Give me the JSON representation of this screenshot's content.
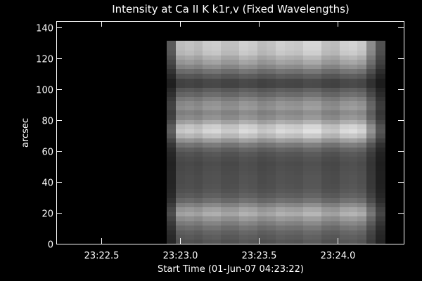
{
  "chart_data": {
    "type": "heatmap",
    "title": "Intensity at Ca II K k1r,v (Fixed Wavelengths)",
    "xlabel": "Start Time (01-Jun-07 04:23:22)",
    "ylabel": "arcsec",
    "xlim": [
      "23:22:13",
      "23:24:25"
    ],
    "ylim": [
      0,
      144
    ],
    "x_ticks": [
      {
        "value": "23:22:30",
        "label": "23:22.5"
      },
      {
        "value": "23:23:00",
        "label": "23:23.0"
      },
      {
        "value": "23:23:30",
        "label": "23:23.5"
      },
      {
        "value": "23:24:00",
        "label": "23:24.0"
      }
    ],
    "y_ticks": [
      0,
      20,
      40,
      60,
      80,
      100,
      120,
      140
    ],
    "colormap": "grayscale",
    "grid": false,
    "data_extent": {
      "x": [
        "23:22:55",
        "23:24:18"
      ],
      "y": [
        0,
        131
      ]
    },
    "row_intensity": [
      {
        "y": 0,
        "value": 0.32
      },
      {
        "y": 4,
        "value": 0.36
      },
      {
        "y": 8,
        "value": 0.4
      },
      {
        "y": 12,
        "value": 0.48
      },
      {
        "y": 16,
        "value": 0.58
      },
      {
        "y": 20,
        "value": 0.7
      },
      {
        "y": 24,
        "value": 0.58
      },
      {
        "y": 28,
        "value": 0.44
      },
      {
        "y": 32,
        "value": 0.36
      },
      {
        "y": 36,
        "value": 0.33
      },
      {
        "y": 40,
        "value": 0.32
      },
      {
        "y": 44,
        "value": 0.32
      },
      {
        "y": 48,
        "value": 0.31
      },
      {
        "y": 52,
        "value": 0.3
      },
      {
        "y": 56,
        "value": 0.32
      },
      {
        "y": 60,
        "value": 0.36
      },
      {
        "y": 64,
        "value": 0.48
      },
      {
        "y": 68,
        "value": 0.66
      },
      {
        "y": 72,
        "value": 0.85
      },
      {
        "y": 76,
        "value": 0.8
      },
      {
        "y": 80,
        "value": 0.62
      },
      {
        "y": 84,
        "value": 0.52
      },
      {
        "y": 88,
        "value": 0.6
      },
      {
        "y": 92,
        "value": 0.56
      },
      {
        "y": 96,
        "value": 0.44
      },
      {
        "y": 100,
        "value": 0.36
      },
      {
        "y": 104,
        "value": 0.24
      },
      {
        "y": 108,
        "value": 0.34
      },
      {
        "y": 112,
        "value": 0.46
      },
      {
        "y": 116,
        "value": 0.6
      },
      {
        "y": 120,
        "value": 0.68
      },
      {
        "y": 124,
        "value": 0.78
      },
      {
        "y": 128,
        "value": 0.8
      },
      {
        "y": 131,
        "value": 0.8
      }
    ],
    "column_modulation": [
      {
        "x": "23:22:55",
        "value": 0.2
      },
      {
        "x": "23:22:58",
        "value": 0.6
      },
      {
        "x": "23:23:01",
        "value": 0.96
      },
      {
        "x": "23:23:10",
        "value": 1.0
      },
      {
        "x": "23:23:20",
        "value": 0.94
      },
      {
        "x": "23:23:30",
        "value": 1.0
      },
      {
        "x": "23:23:40",
        "value": 0.97
      },
      {
        "x": "23:23:50",
        "value": 1.02
      },
      {
        "x": "23:24:00",
        "value": 0.98
      },
      {
        "x": "23:24:10",
        "value": 1.0
      },
      {
        "x": "23:24:14",
        "value": 0.55
      },
      {
        "x": "23:24:18",
        "value": 0.25
      }
    ]
  }
}
